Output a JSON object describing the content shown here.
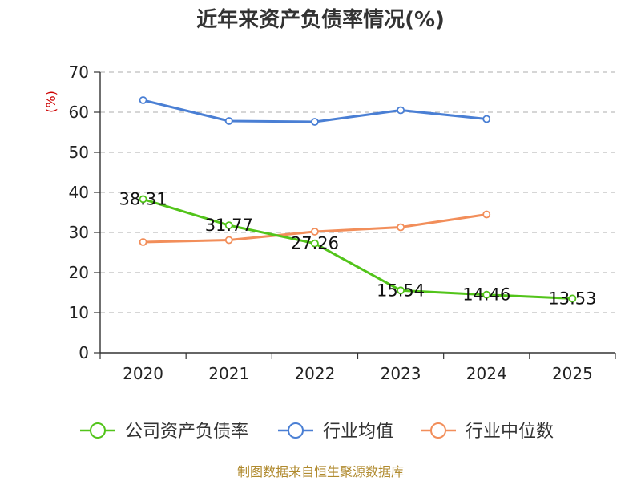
{
  "chart_data": {
    "type": "line",
    "title": "近年来资产负债率情况(%)",
    "ylabel": "(%)",
    "xlabel": "",
    "categories": [
      "2020",
      "2021",
      "2022",
      "2023",
      "2024",
      "2025"
    ],
    "ylim": [
      0,
      70
    ],
    "yticks": [
      0,
      10,
      20,
      30,
      40,
      50,
      60,
      70
    ],
    "grid": true,
    "legend_position": "bottom",
    "series": [
      {
        "name": "公司资产负债率",
        "color": "#52c41a",
        "values": [
          38.31,
          31.77,
          27.26,
          15.54,
          14.46,
          13.53
        ],
        "labels": [
          "38.31",
          "31.77",
          "27.26",
          "15.54",
          "14.46",
          "13.53"
        ]
      },
      {
        "name": "行业均值",
        "color": "#4a7fd4",
        "values": [
          63.0,
          57.8,
          57.6,
          60.5,
          58.3,
          null
        ]
      },
      {
        "name": "行业中位数",
        "color": "#f28e5a",
        "values": [
          27.6,
          28.1,
          30.2,
          31.3,
          34.5,
          null
        ]
      }
    ]
  },
  "source": "制图数据来自恒生聚源数据库"
}
